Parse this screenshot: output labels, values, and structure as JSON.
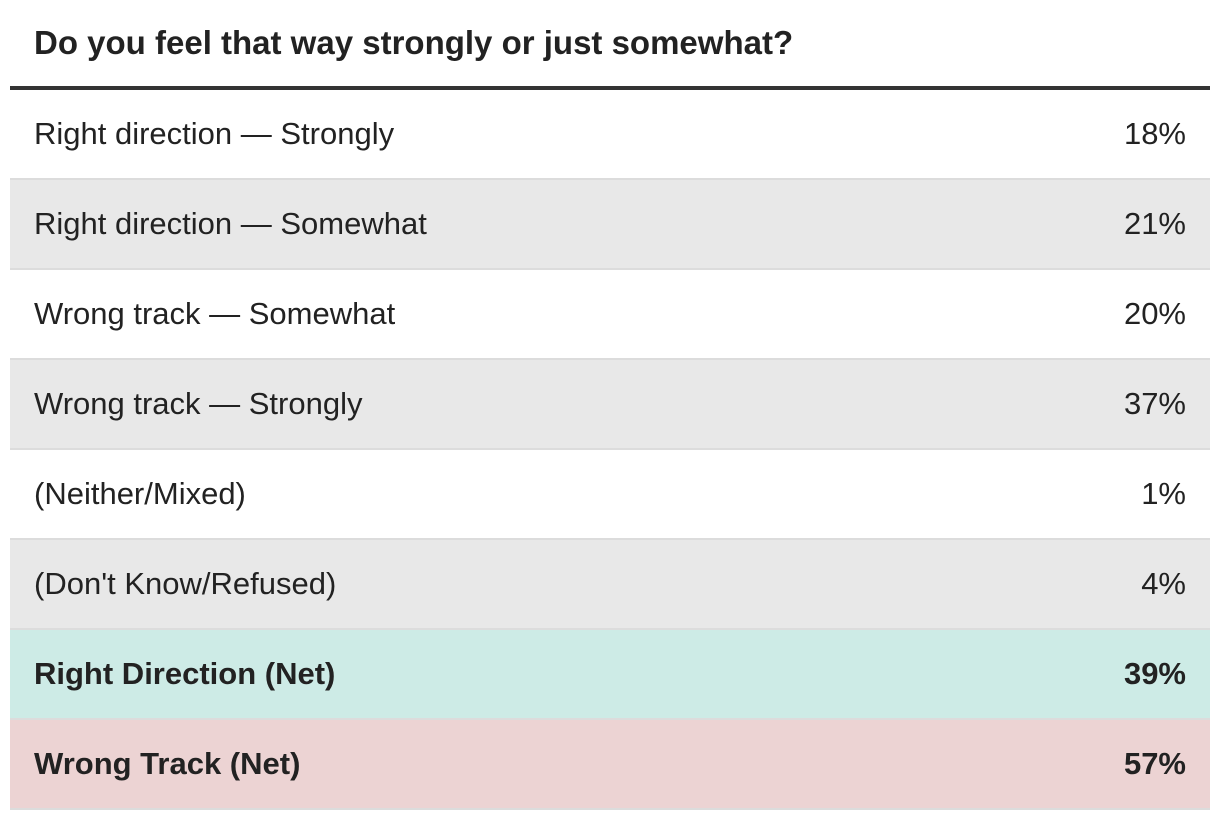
{
  "chart_data": {
    "type": "table",
    "title": "Do you feel that way strongly or just somewhat?",
    "rows": [
      {
        "label": "Right direction — Strongly",
        "value": "18%",
        "bg": "#ffffff",
        "bold": false
      },
      {
        "label": "Right direction — Somewhat",
        "value": "21%",
        "bg": "#e8e8e8",
        "bold": false
      },
      {
        "label": "Wrong track — Somewhat",
        "value": "20%",
        "bg": "#ffffff",
        "bold": false
      },
      {
        "label": "Wrong track — Strongly",
        "value": "37%",
        "bg": "#e8e8e8",
        "bold": false
      },
      {
        "label": "(Neither/Mixed)",
        "value": "1%",
        "bg": "#ffffff",
        "bold": false
      },
      {
        "label": "(Don't Know/Refused)",
        "value": "4%",
        "bg": "#e8e8e8",
        "bold": false
      },
      {
        "label": "Right Direction (Net)",
        "value": "39%",
        "bg": "#cdebe6",
        "bold": true
      },
      {
        "label": "Wrong Track (Net)",
        "value": "57%",
        "bg": "#ecd3d3",
        "bold": true
      }
    ]
  }
}
